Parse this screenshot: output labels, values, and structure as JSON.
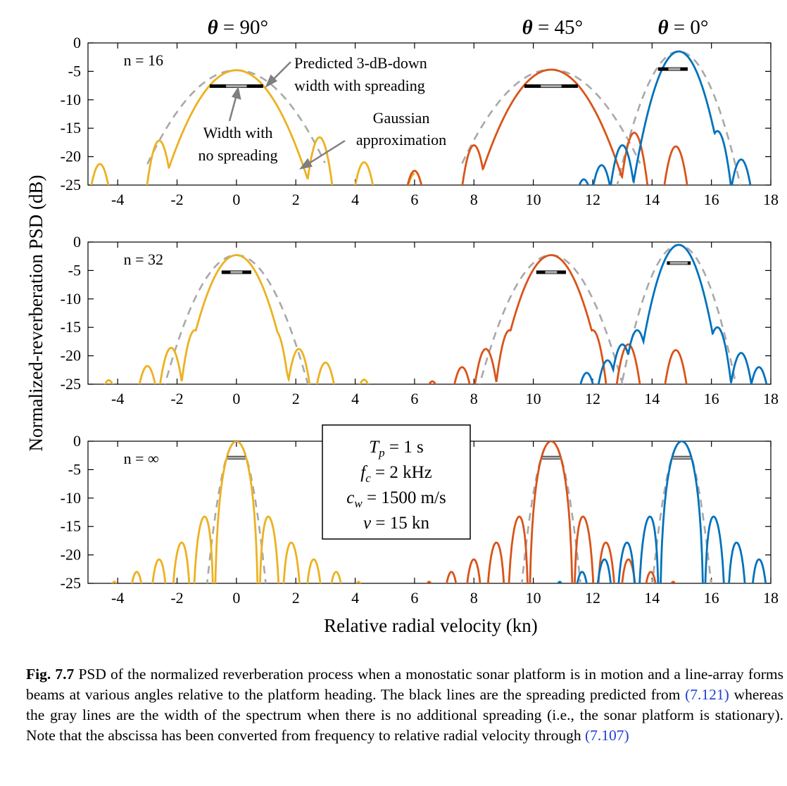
{
  "figure": {
    "header_labels": [
      {
        "text": "θ = 90°",
        "x": 0
      },
      {
        "text": "θ = 45°",
        "x": 10.6
      },
      {
        "text": "θ = 0°",
        "x": 15
      }
    ],
    "ylabel": "Normalized-reverberation PSD (dB)",
    "xlabel": "Relative radial velocity (kn)",
    "annotations": {
      "predicted_line1": "Predicted 3-dB-down",
      "predicted_line2": "width with spreading",
      "nospread_line1": "Width with",
      "nospread_line2": "no spreading",
      "gauss_line1": "Gaussian",
      "gauss_line2": "approximation"
    },
    "params": [
      {
        "sym": "T",
        "sub": "p",
        "rest": " = 1 s"
      },
      {
        "sym": "f",
        "sub": "c",
        "rest": " = 2 kHz"
      },
      {
        "sym": "c",
        "sub": "w",
        "rest": " = 1500 m/s"
      },
      {
        "sym": "v",
        "sub": "",
        "rest": " = 15 kn"
      }
    ]
  },
  "chart_data": {
    "type": "line",
    "xlim": [
      -5,
      18
    ],
    "ylim": [
      -25,
      0
    ],
    "xticks": [
      -4,
      -2,
      0,
      2,
      4,
      6,
      8,
      10,
      12,
      14,
      16,
      18
    ],
    "yticks": [
      0,
      -5,
      -10,
      -15,
      -20,
      -25
    ],
    "colors": {
      "yellow": "#EDB120",
      "orange": "#D95319",
      "blue": "#0072BD",
      "gauss": "#A8A8A8"
    },
    "panels": [
      {
        "label": "n = 16",
        "series": [
          {
            "color": "yellow",
            "center": 0,
            "peak": -4.8,
            "halfwidth": 1.9,
            "sidelobes": [
              [
                -2.6,
                -17.2
              ],
              [
                -1.5,
                -18.5
              ],
              [
                1.5,
                -18.5
              ],
              [
                2.8,
                -16.6
              ],
              [
                -4.6,
                -21.3
              ],
              [
                4.3,
                -21
              ],
              [
                6.0,
                -23
              ]
            ]
          },
          {
            "color": "orange",
            "center": 10.6,
            "peak": -4.7,
            "halfwidth": 1.9,
            "sidelobes": [
              [
                8.0,
                -18.0
              ],
              [
                13.4,
                -15.8
              ],
              [
                14.8,
                -18.2
              ],
              [
                6.0,
                -22.5
              ]
            ]
          },
          {
            "color": "blue",
            "center": 14.9,
            "peak": -1.5,
            "halfwidth": 1.1,
            "sidelobes": [
              [
                13.0,
                -18
              ],
              [
                12.3,
                -21.5
              ],
              [
                16.2,
                -15.5
              ],
              [
                17.0,
                -20.5
              ],
              [
                11.7,
                -24
              ]
            ]
          }
        ],
        "spread_bars": [
          [
            -0.9,
            0.9,
            -7.6
          ],
          [
            9.7,
            11.5,
            -7.6
          ],
          [
            14.2,
            15.2,
            -4.6
          ]
        ],
        "nospread_bars": [
          [
            -0.35,
            0.35,
            -7.6
          ],
          [
            10.25,
            10.95,
            -7.6
          ],
          [
            14.55,
            14.95,
            -4.6
          ]
        ]
      },
      {
        "label": "n = 32",
        "series": [
          {
            "color": "yellow",
            "center": 0,
            "peak": -2.3,
            "halfwidth": 1.3,
            "sidelobes": [
              [
                -1.4,
                -15.5
              ],
              [
                -2.2,
                -18.6
              ],
              [
                -3.0,
                -21.8
              ],
              [
                1.3,
                -15.5
              ],
              [
                2.1,
                -18.8
              ],
              [
                3.0,
                -21.2
              ],
              [
                -4.3,
                -24.3
              ],
              [
                4.3,
                -24.2
              ]
            ]
          },
          {
            "color": "orange",
            "center": 10.6,
            "peak": -2.3,
            "halfwidth": 1.3,
            "sidelobes": [
              [
                9.2,
                -15.5
              ],
              [
                8.4,
                -18.8
              ],
              [
                7.6,
                -22
              ],
              [
                12.0,
                -15.5
              ],
              [
                13.2,
                -18
              ],
              [
                14.8,
                -19
              ],
              [
                6.6,
                -24.5
              ]
            ]
          },
          {
            "color": "blue",
            "center": 14.9,
            "peak": -0.5,
            "halfwidth": 1.0,
            "sidelobes": [
              [
                13.5,
                -15.5
              ],
              [
                13.0,
                -18
              ],
              [
                12.5,
                -20.8
              ],
              [
                16.2,
                -15
              ],
              [
                17.0,
                -19.5
              ],
              [
                17.6,
                -22
              ],
              [
                11.8,
                -23
              ]
            ]
          }
        ],
        "spread_bars": [
          [
            -0.5,
            0.5,
            -5.3
          ],
          [
            10.1,
            11.1,
            -5.3
          ],
          [
            14.5,
            15.3,
            -3.7
          ]
        ],
        "nospread_bars": [
          [
            -0.2,
            0.2,
            -5.3
          ],
          [
            10.4,
            10.8,
            -5.3
          ],
          [
            14.6,
            15.2,
            -3.7
          ]
        ]
      },
      {
        "label": "n = ∞",
        "series": [
          {
            "color": "yellow",
            "center": 0,
            "peak": 0,
            "halfwidth": 0.75,
            "sidelobes": []
          },
          {
            "color": "orange",
            "center": 10.6,
            "peak": 0,
            "halfwidth": 0.75,
            "sidelobes": []
          },
          {
            "color": "blue",
            "center": 15.0,
            "peak": 0,
            "halfwidth": 0.75,
            "sidelobes": []
          }
        ],
        "spread_bars": [
          [
            -0.3,
            0.3,
            -2.9
          ],
          [
            10.3,
            10.9,
            -2.9
          ],
          [
            14.7,
            15.3,
            -2.9
          ]
        ],
        "nospread_bars": [
          [
            -0.3,
            0.3,
            -2.9
          ],
          [
            10.3,
            10.9,
            -2.9
          ],
          [
            14.7,
            15.3,
            -2.9
          ]
        ]
      }
    ]
  },
  "caption": {
    "label": "Fig. 7.7",
    "part1": "PSD of the normalized reverberation process when a monostatic sonar platform is in motion and a line-array forms beams at various angles relative to the platform heading. The black lines are the spreading predicted from ",
    "ref1": "(7.121)",
    "part2": " whereas the gray lines are the width of the spectrum when there is no additional spreading (i.e., the sonar platform is stationary). Note that the abscissa has been converted from frequency to relative radial velocity through ",
    "ref2": "(7.107)"
  }
}
